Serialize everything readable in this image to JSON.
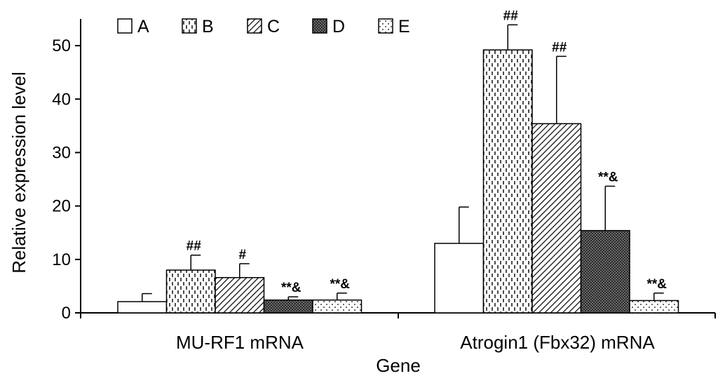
{
  "chart_data": {
    "type": "bar",
    "xlabel": "Gene",
    "ylabel": "Relative expression level",
    "ylim": [
      0,
      55
    ],
    "yticks": [
      0,
      10,
      20,
      30,
      40,
      50
    ],
    "grid": false,
    "legend_position": "top-left",
    "categories": [
      "MU-RF1 mRNA",
      "Atrogin1 (Fbx32) mRNA"
    ],
    "series": [
      {
        "name": "A",
        "pattern": "blank",
        "values": [
          2.1,
          13.0
        ],
        "errors": [
          1.5,
          6.8
        ],
        "annotations": [
          "",
          ""
        ]
      },
      {
        "name": "B",
        "pattern": "brick",
        "values": [
          8.0,
          49.2
        ],
        "errors": [
          2.8,
          4.7
        ],
        "annotations": [
          "##",
          "##"
        ]
      },
      {
        "name": "C",
        "pattern": "diagonal",
        "values": [
          6.6,
          35.4
        ],
        "errors": [
          2.6,
          12.6
        ],
        "annotations": [
          "#",
          "##"
        ]
      },
      {
        "name": "D",
        "pattern": "dense",
        "values": [
          2.4,
          15.4
        ],
        "errors": [
          0.6,
          8.3
        ],
        "annotations": [
          "**&",
          "**&"
        ]
      },
      {
        "name": "E",
        "pattern": "dots",
        "values": [
          2.4,
          2.3
        ],
        "errors": [
          1.3,
          1.4
        ],
        "annotations": [
          "**&",
          "**&"
        ]
      }
    ]
  }
}
